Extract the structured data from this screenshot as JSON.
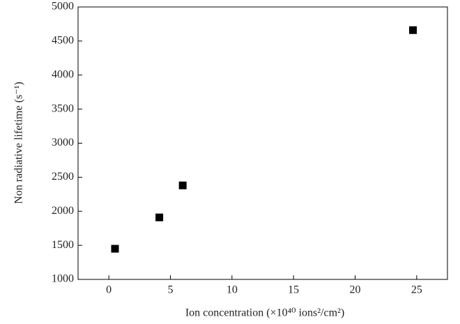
{
  "chart_data": {
    "type": "scatter",
    "x_label": "Ion concentration (×10⁴⁰ ions²/cm²)",
    "y_label": "Non radiative lifetime (s⁻¹)",
    "x": [
      0.5,
      4.1,
      6.0,
      24.7
    ],
    "values": [
      1450,
      1910,
      2380,
      4660
    ],
    "color": "#000000",
    "xlim": [
      -2.5,
      27.5
    ],
    "xticks": [
      0,
      5,
      10,
      15,
      20,
      25
    ],
    "ylim": [
      1000,
      5000
    ],
    "yticks": [
      1000,
      1500,
      2000,
      2500,
      3000,
      3500,
      4000,
      4500,
      5000
    ]
  }
}
